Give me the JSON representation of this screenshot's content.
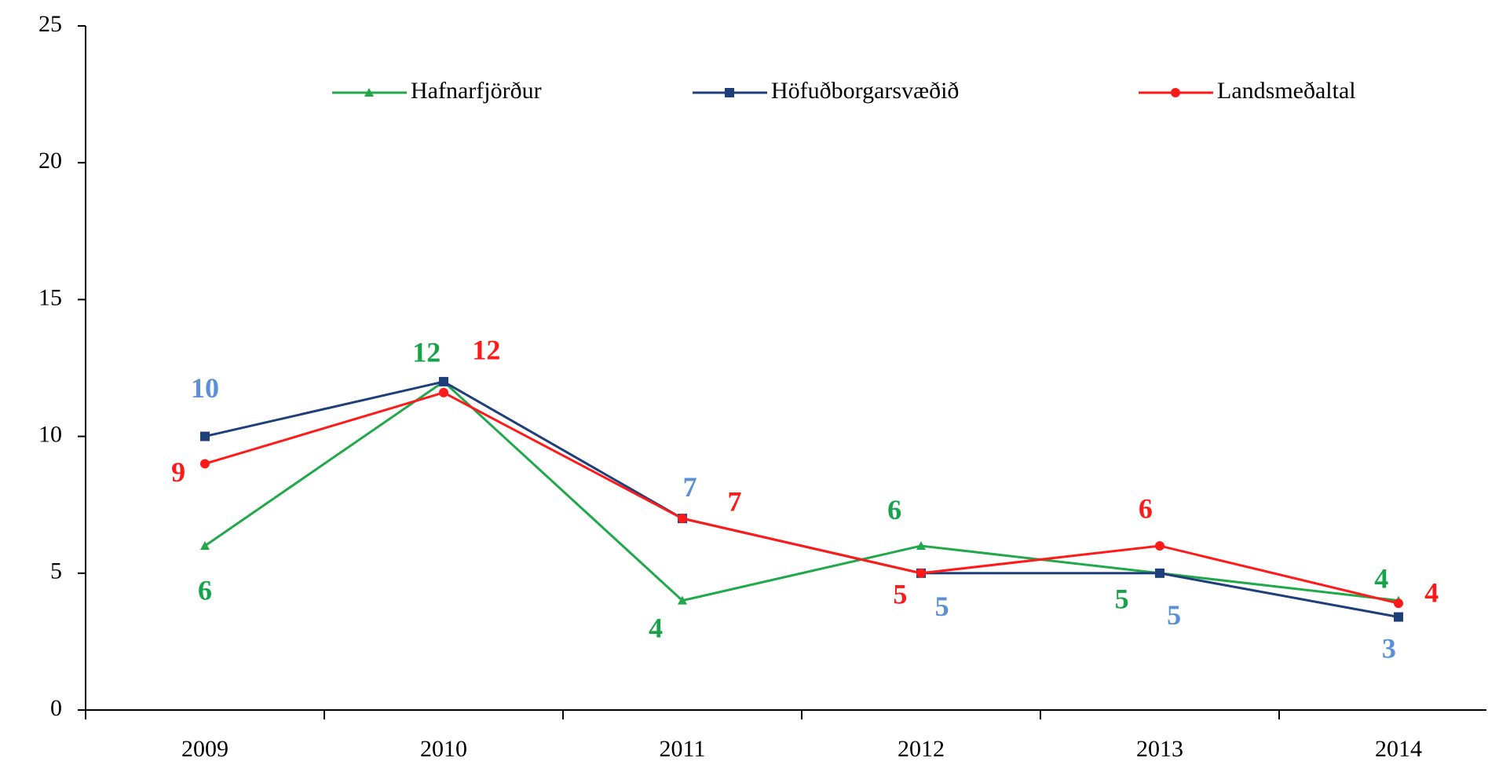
{
  "chart_data": {
    "type": "line",
    "categories": [
      "2009",
      "2010",
      "2011",
      "2012",
      "2013",
      "2014"
    ],
    "series": [
      {
        "name": "Hafnarfjörður",
        "color": "#21a84a",
        "label_color": "#16a34a",
        "marker": "triangle",
        "values": [
          6,
          12,
          4,
          6,
          5,
          4
        ],
        "value_labels": [
          "6",
          "12",
          "4",
          "6",
          "5",
          "4"
        ]
      },
      {
        "name": "Höfuðborgarsvæðið",
        "color": "#1f3f7a",
        "label_color": "#5b8fd6",
        "marker": "square",
        "values": [
          10,
          12,
          7,
          5,
          5,
          3.4
        ],
        "value_labels": [
          "10",
          null,
          "7",
          "5",
          "5",
          "3"
        ]
      },
      {
        "name": "Landsmeðaltal",
        "color": "#ff1a1a",
        "label_color": "#ff1a1a",
        "marker": "circle",
        "values": [
          9,
          11.6,
          7,
          5,
          6,
          3.9
        ],
        "value_labels": [
          "9",
          "12",
          "7",
          "5",
          "6",
          "4"
        ]
      }
    ],
    "ylim": [
      0,
      25
    ],
    "yticks": [
      0,
      5,
      10,
      15,
      20,
      25
    ],
    "grid": false
  }
}
